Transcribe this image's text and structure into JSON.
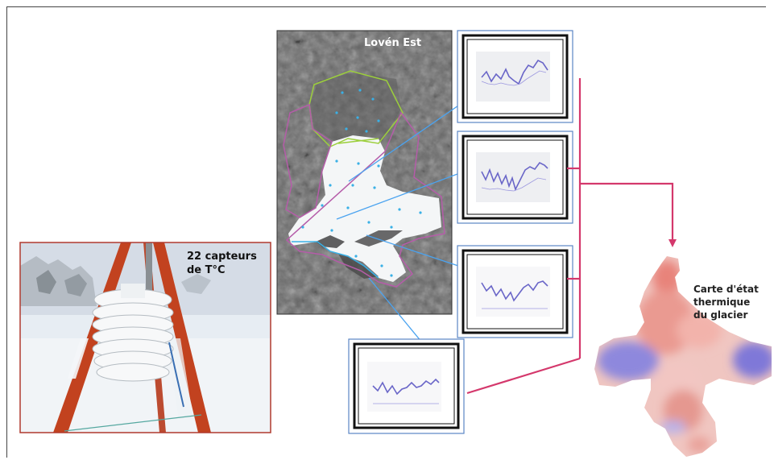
{
  "diagram": {
    "glacier_title": "Lovén Est",
    "sensor_caption_line1": "22 capteurs",
    "sensor_caption_line2": "de T°C",
    "output_caption_line1": "Carte d'état",
    "output_caption_line2": "thermique",
    "output_caption_line3": "du glacier"
  },
  "colors": {
    "link_line": "#4aa3f0",
    "flow_arrow": "#d4386c",
    "sensor_point": "#3ab0e6",
    "panel_border": "#5b86c5",
    "photo_border": "#b03a2e",
    "warm": "#e8837a",
    "cold": "#7f78d8"
  }
}
